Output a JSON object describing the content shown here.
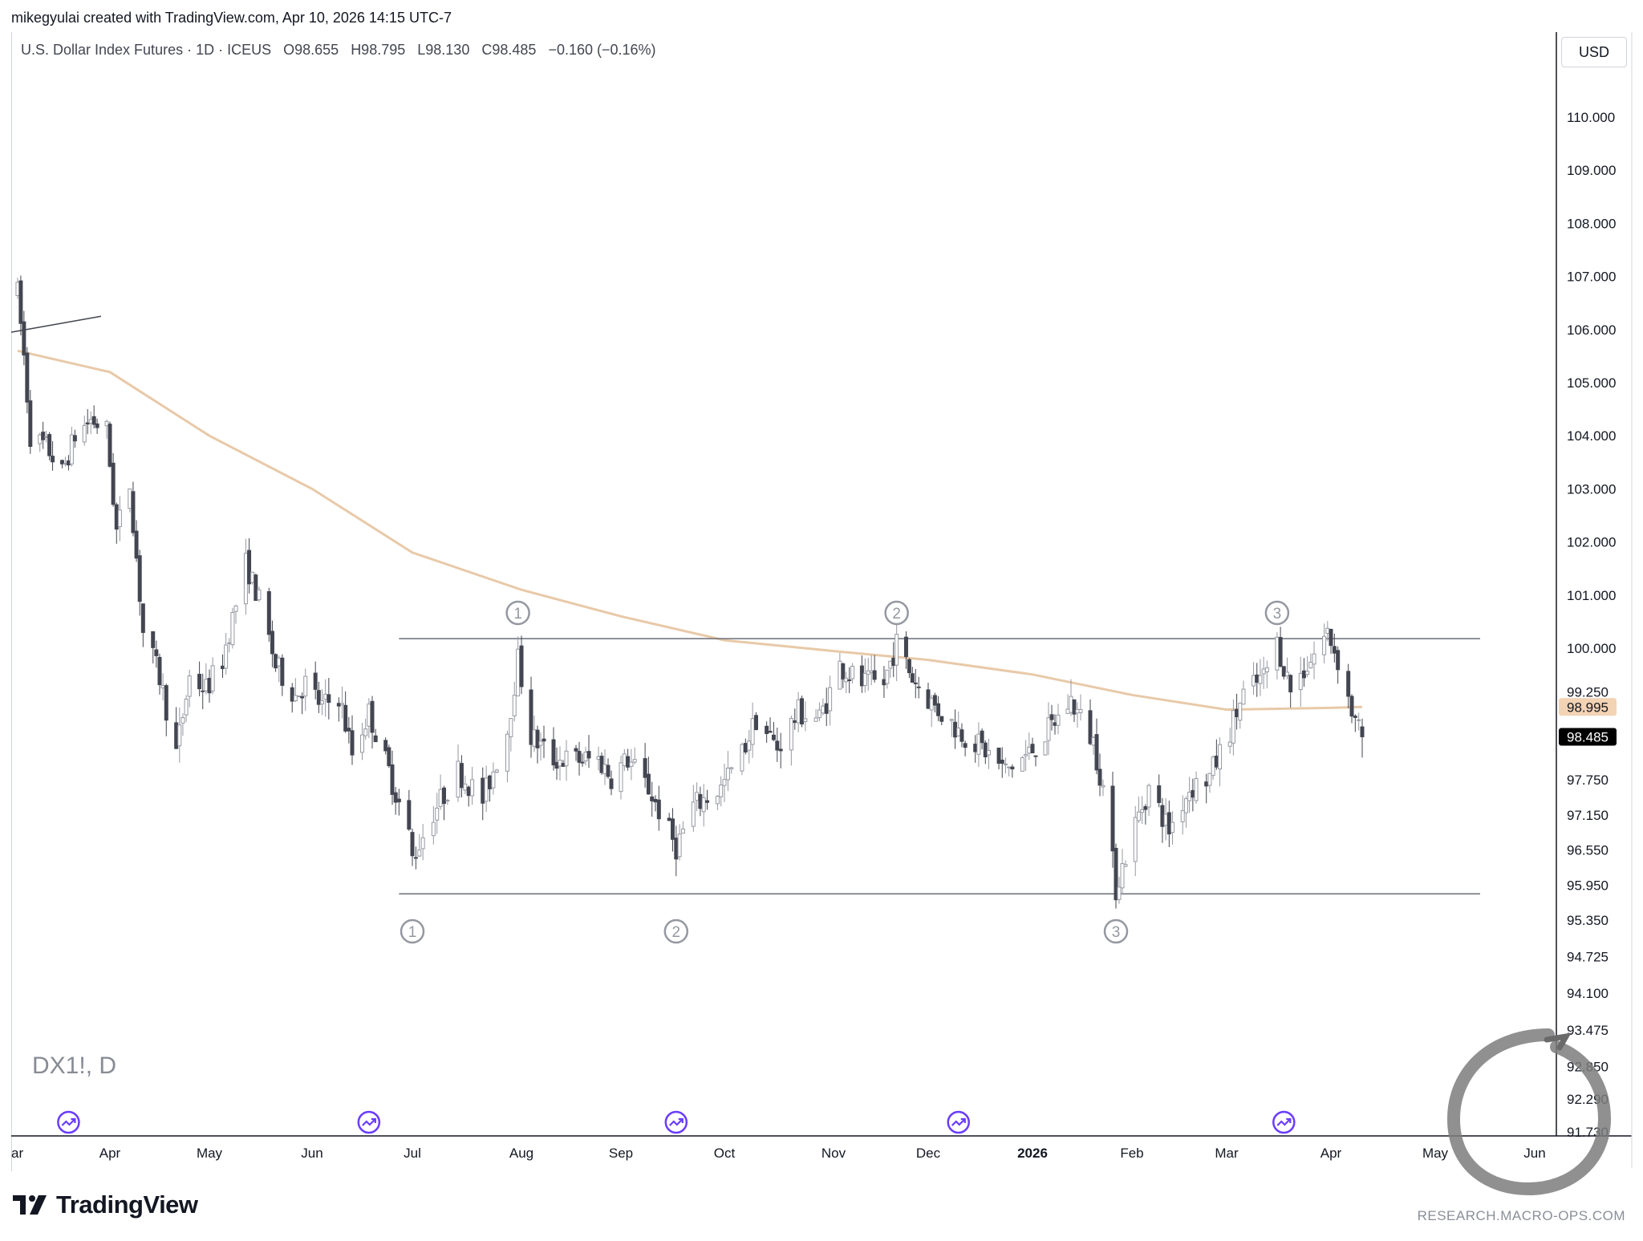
{
  "header": {
    "credit": "mikegyulai created with TradingView.com, Apr 10, 2026 14:15 UTC-7"
  },
  "legend": {
    "instrument": "U.S. Dollar Index Futures · 1D · ICEUS",
    "open": "O98.655",
    "high": "H98.795",
    "low": "L98.130",
    "close": "C98.485",
    "change": "−0.160 (−0.16%)"
  },
  "currency": "USD",
  "watermark": "DX1!, D",
  "brand": {
    "name": "TradingView"
  },
  "footer": {
    "url": "RESEARCH.MACRO-OPS.COM"
  },
  "colors": {
    "candle_down": "#434651",
    "candle_up_fill": "#ffffff",
    "candle_up_border": "#9598a1",
    "moving_average": "#e8c9a8",
    "price_tag_ma": "#f2d3b3",
    "price_tag_last": "#000000",
    "level_lines": "#6a6d78",
    "event_marker": "#6a3cff",
    "pivot_marker": "#9598a1"
  },
  "chart_data": {
    "type": "candlestick",
    "price_scale": {
      "ticks": [
        110.0,
        109.0,
        108.0,
        107.0,
        106.0,
        105.0,
        104.0,
        103.0,
        102.0,
        101.0,
        100.0,
        99.25,
        97.75,
        97.15,
        96.55,
        95.95,
        95.35,
        94.725,
        94.1,
        93.475,
        92.85,
        92.29,
        91.73
      ],
      "tick_labels": [
        "110.000",
        "109.000",
        "108.000",
        "107.000",
        "106.000",
        "105.000",
        "104.000",
        "103.000",
        "102.000",
        "101.000",
        "100.000",
        "99.250",
        "97.750",
        "97.150",
        "96.550",
        "95.950",
        "95.350",
        "94.725",
        "94.100",
        "93.475",
        "92.850",
        "92.290",
        "91.730"
      ],
      "scale": "logarithmic"
    },
    "time_scale": {
      "labels": [
        "ar",
        "Apr",
        "May",
        "Jun",
        "Jul",
        "Aug",
        "Sep",
        "Oct",
        "Nov",
        "Dec",
        "2026",
        "Feb",
        "Mar",
        "Apr",
        "May",
        "Jun"
      ],
      "bold_labels": [
        "2026"
      ]
    },
    "price_tags": [
      {
        "label": "98.995",
        "value": 98.995,
        "kind": "moving-average"
      },
      {
        "label": "98.485",
        "value": 98.485,
        "kind": "last-price"
      }
    ],
    "last": {
      "open": 98.655,
      "high": 98.795,
      "low": 98.13,
      "close": 98.485
    },
    "horizontal_levels": [
      {
        "value": 100.18,
        "from": "2025-06-27",
        "to": "2026-05-15"
      },
      {
        "value": 95.8,
        "from": "2025-06-27",
        "to": "2026-05-15"
      }
    ],
    "pivot_markers": [
      {
        "label": "1",
        "position": "above",
        "date": "2025-07-31"
      },
      {
        "label": "2",
        "position": "above",
        "date": "2025-11-21"
      },
      {
        "label": "3",
        "position": "above",
        "date": "2026-03-16"
      },
      {
        "label": "1",
        "position": "below",
        "date": "2025-07-01"
      },
      {
        "label": "2",
        "position": "below",
        "date": "2025-09-17"
      },
      {
        "label": "3",
        "position": "below",
        "date": "2026-01-27"
      }
    ],
    "event_markers": [
      "2025-03-19",
      "2025-06-18",
      "2025-09-17",
      "2025-12-10",
      "2026-03-18"
    ],
    "moving_average": {
      "points": [
        [
          "2025-03-03",
          105.6
        ],
        [
          "2025-04-01",
          105.2
        ],
        [
          "2025-05-01",
          104.0
        ],
        [
          "2025-06-01",
          103.0
        ],
        [
          "2025-07-01",
          101.8
        ],
        [
          "2025-08-01",
          101.1
        ],
        [
          "2025-09-01",
          100.6
        ],
        [
          "2025-10-01",
          100.15
        ],
        [
          "2025-11-01",
          99.95
        ],
        [
          "2025-12-01",
          99.8
        ],
        [
          "2026-01-01",
          99.55
        ],
        [
          "2026-02-01",
          99.2
        ],
        [
          "2026-03-01",
          98.95
        ],
        [
          "2026-04-01",
          98.98
        ],
        [
          "2026-04-10",
          98.995
        ]
      ]
    },
    "prices": [
      [
        "2025-03-03",
        106.7
      ],
      [
        "2025-03-05",
        105.5
      ],
      [
        "2025-03-07",
        104.0
      ],
      [
        "2025-03-12",
        103.8
      ],
      [
        "2025-03-17",
        103.3
      ],
      [
        "2025-03-21",
        104.0
      ],
      [
        "2025-03-26",
        104.3
      ],
      [
        "2025-03-31",
        104.1
      ],
      [
        "2025-04-03",
        102.2
      ],
      [
        "2025-04-07",
        103.1
      ],
      [
        "2025-04-11",
        100.3
      ],
      [
        "2025-04-16",
        99.5
      ],
      [
        "2025-04-21",
        98.2
      ],
      [
        "2025-04-25",
        99.5
      ],
      [
        "2025-04-30",
        99.3
      ],
      [
        "2025-05-05",
        99.8
      ],
      [
        "2025-05-12",
        101.6
      ],
      [
        "2025-05-16",
        100.9
      ],
      [
        "2025-05-21",
        99.7
      ],
      [
        "2025-05-27",
        99.2
      ],
      [
        "2025-05-30",
        99.4
      ],
      [
        "2025-06-04",
        99.0
      ],
      [
        "2025-06-09",
        99.2
      ],
      [
        "2025-06-13",
        98.2
      ],
      [
        "2025-06-18",
        98.9
      ],
      [
        "2025-06-24",
        97.9
      ],
      [
        "2025-06-30",
        96.8
      ],
      [
        "2025-07-01",
        96.4
      ],
      [
        "2025-07-07",
        97.2
      ],
      [
        "2025-07-14",
        97.9
      ],
      [
        "2025-07-21",
        97.4
      ],
      [
        "2025-07-28",
        98.6
      ],
      [
        "2025-07-31",
        99.8
      ],
      [
        "2025-08-04",
        98.5
      ],
      [
        "2025-08-11",
        98.1
      ],
      [
        "2025-08-18",
        98.1
      ],
      [
        "2025-08-25",
        98.1
      ],
      [
        "2025-08-29",
        97.8
      ],
      [
        "2025-09-03",
        98.1
      ],
      [
        "2025-09-09",
        97.6
      ],
      [
        "2025-09-17",
        96.6
      ],
      [
        "2025-09-22",
        97.3
      ],
      [
        "2025-09-30",
        97.6
      ],
      [
        "2025-10-06",
        98.2
      ],
      [
        "2025-10-10",
        98.8
      ],
      [
        "2025-10-16",
        98.3
      ],
      [
        "2025-10-22",
        98.9
      ],
      [
        "2025-10-28",
        98.8
      ],
      [
        "2025-11-03",
        99.7
      ],
      [
        "2025-11-10",
        99.4
      ],
      [
        "2025-11-17",
        99.4
      ],
      [
        "2025-11-21",
        100.1
      ],
      [
        "2025-11-26",
        99.5
      ],
      [
        "2025-12-03",
        99.0
      ],
      [
        "2025-12-10",
        98.6
      ],
      [
        "2025-12-17",
        98.3
      ],
      [
        "2025-12-24",
        97.9
      ],
      [
        "2025-12-31",
        98.2
      ],
      [
        "2026-01-06",
        98.6
      ],
      [
        "2026-01-13",
        99.1
      ],
      [
        "2026-01-20",
        98.4
      ],
      [
        "2026-01-23",
        97.6
      ],
      [
        "2026-01-27",
        95.9
      ],
      [
        "2026-02-02",
        97.0
      ],
      [
        "2026-02-06",
        97.6
      ],
      [
        "2026-02-12",
        96.9
      ],
      [
        "2026-02-18",
        97.6
      ],
      [
        "2026-02-24",
        97.8
      ],
      [
        "2026-03-02",
        98.6
      ],
      [
        "2026-03-06",
        99.2
      ],
      [
        "2026-03-12",
        99.5
      ],
      [
        "2026-03-16",
        100.1
      ],
      [
        "2026-03-20",
        99.3
      ],
      [
        "2026-03-26",
        99.8
      ],
      [
        "2026-03-31",
        100.3
      ],
      [
        "2026-04-03",
        99.8
      ],
      [
        "2026-04-08",
        98.7
      ],
      [
        "2026-04-10",
        98.485
      ]
    ]
  }
}
